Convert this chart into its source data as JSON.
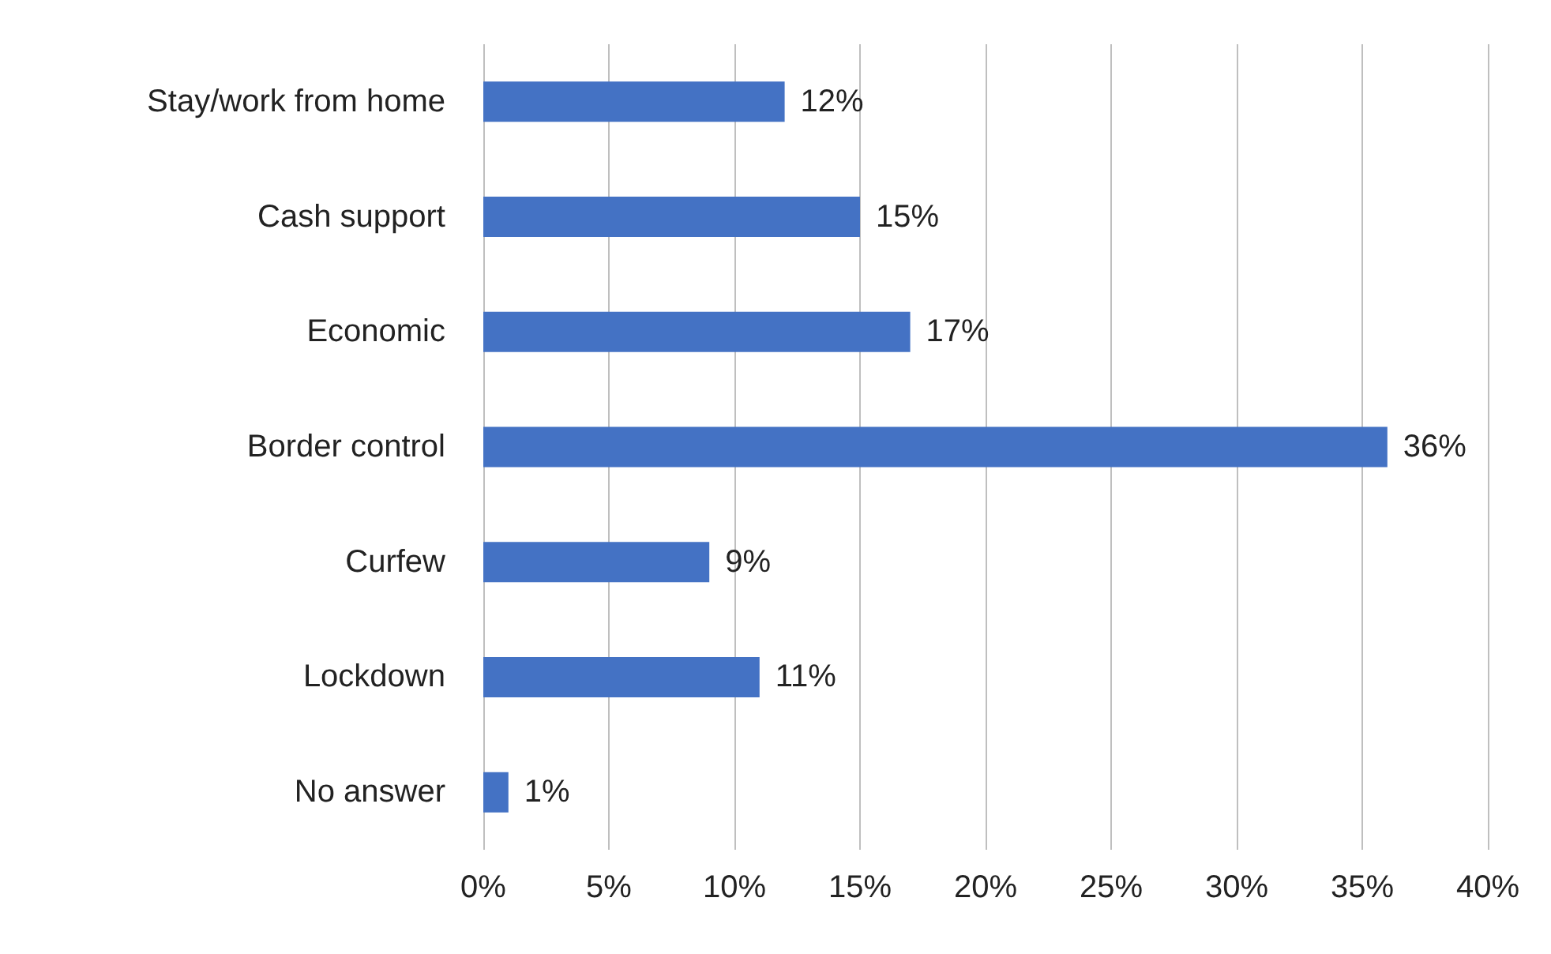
{
  "chart_data": {
    "type": "bar",
    "orientation": "horizontal",
    "categories": [
      "Stay/work from home",
      "Cash support",
      "Economic",
      "Border control",
      "Curfew",
      "Lockdown",
      "No answer"
    ],
    "values": [
      12,
      15,
      17,
      36,
      9,
      11,
      1
    ],
    "value_labels": [
      "12%",
      "15%",
      "17%",
      "36%",
      "9%",
      "11%",
      "1%"
    ],
    "color": "#4472c4",
    "xlim": [
      0,
      40
    ],
    "xticks": [
      {
        "value": 0,
        "label": "0%"
      },
      {
        "value": 5,
        "label": "5%"
      },
      {
        "value": 10,
        "label": "10%"
      },
      {
        "value": 15,
        "label": "15%"
      },
      {
        "value": 20,
        "label": "20%"
      },
      {
        "value": 25,
        "label": "25%"
      },
      {
        "value": 30,
        "label": "30%"
      },
      {
        "value": 35,
        "label": "35%"
      },
      {
        "value": 40,
        "label": "40%"
      }
    ],
    "grid": "x"
  }
}
